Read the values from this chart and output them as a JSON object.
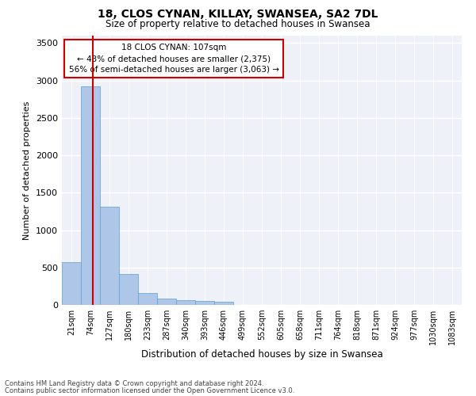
{
  "title1": "18, CLOS CYNAN, KILLAY, SWANSEA, SA2 7DL",
  "title2": "Size of property relative to detached houses in Swansea",
  "xlabel": "Distribution of detached houses by size in Swansea",
  "ylabel": "Number of detached properties",
  "footer1": "Contains HM Land Registry data © Crown copyright and database right 2024.",
  "footer2": "Contains public sector information licensed under the Open Government Licence v3.0.",
  "annotation_title": "18 CLOS CYNAN: 107sqm",
  "annotation_line1": "← 43% of detached houses are smaller (2,375)",
  "annotation_line2": "56% of semi-detached houses are larger (3,063) →",
  "property_size": 107,
  "bar_color": "#aec6e8",
  "bar_edge_color": "#5a9fd4",
  "vline_color": "#cc0000",
  "background_color": "#eef2f8",
  "grid_color": "#ffffff",
  "categories": [
    "21sqm",
    "74sqm",
    "127sqm",
    "180sqm",
    "233sqm",
    "287sqm",
    "340sqm",
    "393sqm",
    "446sqm",
    "499sqm",
    "552sqm",
    "605sqm",
    "658sqm",
    "711sqm",
    "764sqm",
    "818sqm",
    "871sqm",
    "924sqm",
    "977sqm",
    "1030sqm",
    "1083sqm"
  ],
  "values": [
    570,
    2920,
    1310,
    410,
    155,
    80,
    60,
    50,
    40,
    0,
    0,
    0,
    0,
    0,
    0,
    0,
    0,
    0,
    0,
    0,
    0
  ],
  "ylim": [
    0,
    3600
  ],
  "yticks": [
    0,
    500,
    1000,
    1500,
    2000,
    2500,
    3000,
    3500
  ]
}
